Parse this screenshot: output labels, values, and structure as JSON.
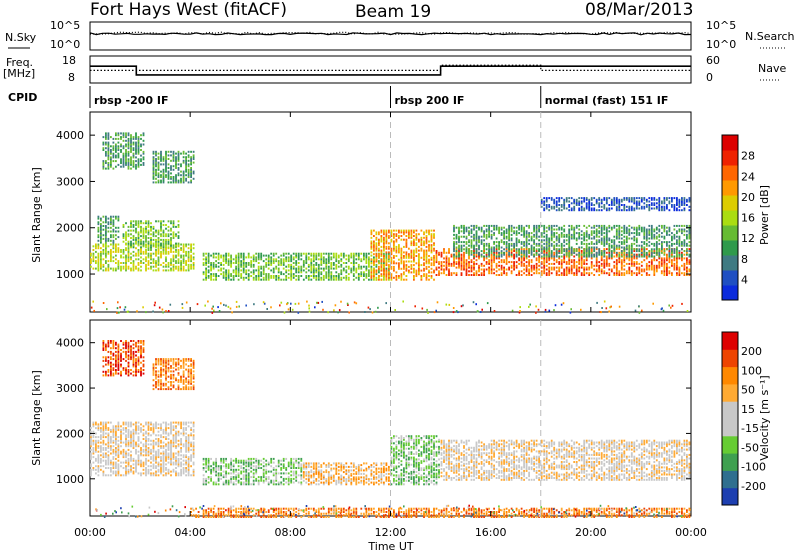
{
  "header": {
    "station": "Fort Hays West (fitACF)",
    "beam": "Beam 19",
    "date": "08/Mar/2013"
  },
  "colors": {
    "scale": [
      "#0b2bdc",
      "#1f4fc2",
      "#3f7a82",
      "#2f9a4c",
      "#66bb33",
      "#aadd11",
      "#ddcc00",
      "#ff9900",
      "#ff6600",
      "#ee2200",
      "#dd0000"
    ],
    "velocity": [
      "#dd0000",
      "#ee4400",
      "#ff8800",
      "#ffaa33",
      "#c8c8c8",
      "#c8c8c8",
      "#66cc33",
      "#3fa050",
      "#2f6f8f",
      "#1d3fb0"
    ]
  },
  "chart_data": [
    {
      "type": "line",
      "panel": "noise-sky-search",
      "left_label": "N.Sky",
      "left_ticks": [
        "10^5",
        "10^0"
      ],
      "right_label": "N.Search",
      "right_ticks": [
        "10^5",
        "10^0"
      ],
      "x_range_hours": [
        0,
        24
      ],
      "series": [
        {
          "name": "N.Sky",
          "style": "solid",
          "level": 0.58
        },
        {
          "name": "N.Search",
          "style": "dotted",
          "level": 0.6
        }
      ]
    },
    {
      "type": "line",
      "panel": "frequency-nave",
      "left_label_line1": "Freq.",
      "left_label_line2": "[MHz]",
      "left_ticks": [
        {
          "value": 18,
          "label": "18"
        },
        {
          "value": 8,
          "label": "8"
        }
      ],
      "y_range": [
        6,
        20
      ],
      "right_label": "Nave",
      "right_ticks": [
        {
          "value": 60,
          "label": "60"
        },
        {
          "value": 0,
          "label": "0"
        }
      ],
      "right_range": [
        -7,
        72
      ],
      "series": [
        {
          "name": "Freq.",
          "style": "solid",
          "points": [
            [
              0,
              14.7
            ],
            [
              1.85,
              14.7
            ],
            [
              1.85,
              10.2
            ],
            [
              14.0,
              10.2
            ],
            [
              14.0,
              14.7
            ],
            [
              24,
              14.7
            ]
          ]
        },
        {
          "name": "Nave",
          "style": "dotted",
          "points": [
            [
              0,
              30
            ],
            [
              14.0,
              30
            ],
            [
              14.0,
              45
            ],
            [
              18.0,
              45
            ],
            [
              18.0,
              30
            ],
            [
              24,
              30
            ]
          ]
        }
      ]
    },
    {
      "type": "table",
      "panel": "cpid",
      "label": "CPID",
      "segments": [
        {
          "start": 0,
          "end": 12.0,
          "name": "rbsp -200 IF"
        },
        {
          "start": 12.0,
          "end": 18.0,
          "name": "rbsp 200 IF"
        },
        {
          "start": 18.0,
          "end": 24,
          "name": "normal (fast) 151 IF"
        }
      ]
    },
    {
      "type": "heatmap",
      "panel": "power",
      "ylabel": "Slant Range [km]",
      "y_range": [
        180,
        4500
      ],
      "y_ticks": [
        1000,
        2000,
        3000,
        4000
      ],
      "colorbar_label": "Power [dB]",
      "colorbar_ticks": [
        4,
        8,
        12,
        16,
        20,
        24,
        28
      ],
      "colorbar_range": [
        0,
        32
      ],
      "blobs": [
        {
          "t0": 0.0,
          "t1": 4.2,
          "r0": 1100,
          "r1": 1700,
          "level": 5
        },
        {
          "t0": 0.3,
          "t1": 1.2,
          "r0": 1700,
          "r1": 2300,
          "level": 3
        },
        {
          "t0": 1.3,
          "t1": 3.6,
          "r0": 1600,
          "r1": 2200,
          "level": 4
        },
        {
          "t0": 0.5,
          "t1": 2.2,
          "r0": 3300,
          "r1": 4100,
          "level": 3
        },
        {
          "t0": 2.5,
          "t1": 4.2,
          "r0": 3000,
          "r1": 3700,
          "level": 3
        },
        {
          "t0": 4.5,
          "t1": 12.0,
          "r0": 900,
          "r1": 1500,
          "level": 4
        },
        {
          "t0": 11.2,
          "t1": 13.8,
          "r0": 900,
          "r1": 2000,
          "level": 7
        },
        {
          "t0": 13.8,
          "t1": 24.0,
          "r0": 1000,
          "r1": 1600,
          "level": 8
        },
        {
          "t0": 14.5,
          "t1": 24.0,
          "r0": 1400,
          "r1": 2100,
          "level": 3
        },
        {
          "t0": 18.0,
          "t1": 24.0,
          "r0": 2400,
          "r1": 2700,
          "level": 1
        }
      ]
    },
    {
      "type": "heatmap",
      "panel": "velocity",
      "xlabel": "Time UT",
      "x_ticks": [
        "00:00",
        "04:00",
        "08:00",
        "12:00",
        "16:00",
        "20:00",
        "00:00"
      ],
      "ylabel": "Slant Range [km]",
      "y_range": [
        180,
        4500
      ],
      "y_ticks": [
        1000,
        2000,
        3000,
        4000
      ],
      "colorbar_label": "Velocity [m s⁻¹]",
      "colorbar_ticks": [
        "200",
        "100",
        "50",
        "15",
        "-15",
        "-50",
        "-100",
        "-200"
      ],
      "blobs": [
        {
          "t0": 0.0,
          "t1": 4.2,
          "r0": 1100,
          "r1": 2300,
          "level": 4
        },
        {
          "t0": 0.5,
          "t1": 2.2,
          "r0": 3300,
          "r1": 4100,
          "level": 1
        },
        {
          "t0": 2.5,
          "t1": 4.2,
          "r0": 3000,
          "r1": 3700,
          "level": 2
        },
        {
          "t0": 4.5,
          "t1": 8.5,
          "r0": 900,
          "r1": 1500,
          "level": 6
        },
        {
          "t0": 8.5,
          "t1": 12.0,
          "r0": 900,
          "r1": 1400,
          "level": 3
        },
        {
          "t0": 12.0,
          "t1": 14.0,
          "r0": 900,
          "r1": 2000,
          "level": 6
        },
        {
          "t0": 14.0,
          "t1": 24.0,
          "r0": 1000,
          "r1": 1900,
          "level": 4
        },
        {
          "t0": 4.0,
          "t1": 24.0,
          "r0": 180,
          "r1": 400,
          "level": 2
        }
      ]
    }
  ]
}
